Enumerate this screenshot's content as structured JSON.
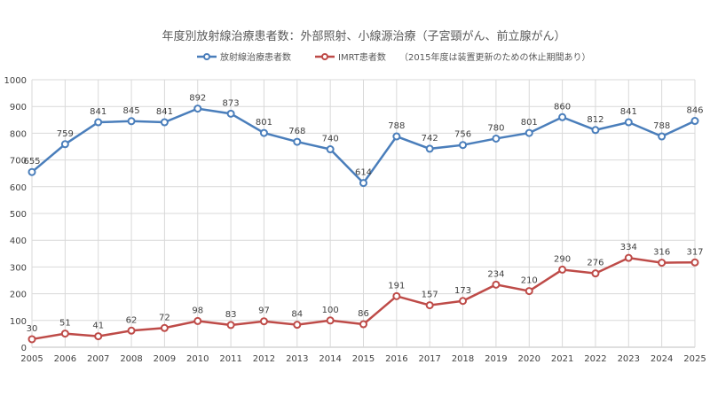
{
  "chart_data": {
    "type": "line",
    "title": "年度別放射線治療患者数：外部照射、小線源治療（子宮頸がん、前立腺がん）",
    "x": [
      "2005",
      "2006",
      "2007",
      "2008",
      "2009",
      "2010",
      "2011",
      "2012",
      "2013",
      "2014",
      "2015",
      "2016",
      "2017",
      "2018",
      "2019",
      "2020",
      "2021",
      "2022",
      "2023",
      "2024",
      "2025"
    ],
    "ylim": [
      0,
      1000
    ],
    "yticks": [
      0,
      100,
      200,
      300,
      400,
      500,
      600,
      700,
      800,
      900,
      1000
    ],
    "grid": true,
    "legend_position": "top",
    "series": [
      {
        "name": "放射線治療患者数",
        "color": "#4a7ebb",
        "values": [
          655,
          759,
          841,
          845,
          841,
          892,
          873,
          801,
          768,
          740,
          614,
          788,
          742,
          756,
          780,
          801,
          860,
          812,
          841,
          788,
          846
        ]
      },
      {
        "name": "IMRT患者数",
        "color": "#be4b48",
        "values": [
          30,
          51,
          41,
          62,
          72,
          98,
          83,
          97,
          84,
          100,
          86,
          191,
          157,
          173,
          234,
          210,
          290,
          276,
          334,
          316,
          317
        ]
      }
    ],
    "legend_note": "（2015年度は装置更新のための休止期間あり）"
  }
}
